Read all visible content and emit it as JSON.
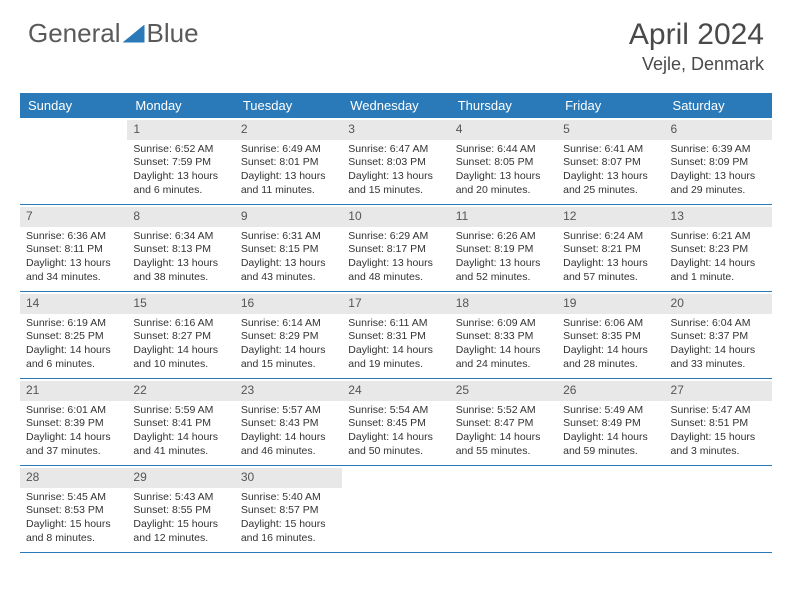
{
  "brand": {
    "part1": "General",
    "part2": "Blue"
  },
  "title": {
    "month": "April 2024",
    "location": "Vejle, Denmark"
  },
  "colors": {
    "header_bg": "#2a7ab9",
    "header_text": "#ffffff",
    "daynum_bg": "#e8e8e8",
    "text": "#333333",
    "rule": "#2a7ab9"
  },
  "weekdays": [
    "Sunday",
    "Monday",
    "Tuesday",
    "Wednesday",
    "Thursday",
    "Friday",
    "Saturday"
  ],
  "weeks": [
    [
      null,
      {
        "n": "1",
        "sr": "Sunrise: 6:52 AM",
        "ss": "Sunset: 7:59 PM",
        "dl1": "Daylight: 13 hours",
        "dl2": "and 6 minutes."
      },
      {
        "n": "2",
        "sr": "Sunrise: 6:49 AM",
        "ss": "Sunset: 8:01 PM",
        "dl1": "Daylight: 13 hours",
        "dl2": "and 11 minutes."
      },
      {
        "n": "3",
        "sr": "Sunrise: 6:47 AM",
        "ss": "Sunset: 8:03 PM",
        "dl1": "Daylight: 13 hours",
        "dl2": "and 15 minutes."
      },
      {
        "n": "4",
        "sr": "Sunrise: 6:44 AM",
        "ss": "Sunset: 8:05 PM",
        "dl1": "Daylight: 13 hours",
        "dl2": "and 20 minutes."
      },
      {
        "n": "5",
        "sr": "Sunrise: 6:41 AM",
        "ss": "Sunset: 8:07 PM",
        "dl1": "Daylight: 13 hours",
        "dl2": "and 25 minutes."
      },
      {
        "n": "6",
        "sr": "Sunrise: 6:39 AM",
        "ss": "Sunset: 8:09 PM",
        "dl1": "Daylight: 13 hours",
        "dl2": "and 29 minutes."
      }
    ],
    [
      {
        "n": "7",
        "sr": "Sunrise: 6:36 AM",
        "ss": "Sunset: 8:11 PM",
        "dl1": "Daylight: 13 hours",
        "dl2": "and 34 minutes."
      },
      {
        "n": "8",
        "sr": "Sunrise: 6:34 AM",
        "ss": "Sunset: 8:13 PM",
        "dl1": "Daylight: 13 hours",
        "dl2": "and 38 minutes."
      },
      {
        "n": "9",
        "sr": "Sunrise: 6:31 AM",
        "ss": "Sunset: 8:15 PM",
        "dl1": "Daylight: 13 hours",
        "dl2": "and 43 minutes."
      },
      {
        "n": "10",
        "sr": "Sunrise: 6:29 AM",
        "ss": "Sunset: 8:17 PM",
        "dl1": "Daylight: 13 hours",
        "dl2": "and 48 minutes."
      },
      {
        "n": "11",
        "sr": "Sunrise: 6:26 AM",
        "ss": "Sunset: 8:19 PM",
        "dl1": "Daylight: 13 hours",
        "dl2": "and 52 minutes."
      },
      {
        "n": "12",
        "sr": "Sunrise: 6:24 AM",
        "ss": "Sunset: 8:21 PM",
        "dl1": "Daylight: 13 hours",
        "dl2": "and 57 minutes."
      },
      {
        "n": "13",
        "sr": "Sunrise: 6:21 AM",
        "ss": "Sunset: 8:23 PM",
        "dl1": "Daylight: 14 hours",
        "dl2": "and 1 minute."
      }
    ],
    [
      {
        "n": "14",
        "sr": "Sunrise: 6:19 AM",
        "ss": "Sunset: 8:25 PM",
        "dl1": "Daylight: 14 hours",
        "dl2": "and 6 minutes."
      },
      {
        "n": "15",
        "sr": "Sunrise: 6:16 AM",
        "ss": "Sunset: 8:27 PM",
        "dl1": "Daylight: 14 hours",
        "dl2": "and 10 minutes."
      },
      {
        "n": "16",
        "sr": "Sunrise: 6:14 AM",
        "ss": "Sunset: 8:29 PM",
        "dl1": "Daylight: 14 hours",
        "dl2": "and 15 minutes."
      },
      {
        "n": "17",
        "sr": "Sunrise: 6:11 AM",
        "ss": "Sunset: 8:31 PM",
        "dl1": "Daylight: 14 hours",
        "dl2": "and 19 minutes."
      },
      {
        "n": "18",
        "sr": "Sunrise: 6:09 AM",
        "ss": "Sunset: 8:33 PM",
        "dl1": "Daylight: 14 hours",
        "dl2": "and 24 minutes."
      },
      {
        "n": "19",
        "sr": "Sunrise: 6:06 AM",
        "ss": "Sunset: 8:35 PM",
        "dl1": "Daylight: 14 hours",
        "dl2": "and 28 minutes."
      },
      {
        "n": "20",
        "sr": "Sunrise: 6:04 AM",
        "ss": "Sunset: 8:37 PM",
        "dl1": "Daylight: 14 hours",
        "dl2": "and 33 minutes."
      }
    ],
    [
      {
        "n": "21",
        "sr": "Sunrise: 6:01 AM",
        "ss": "Sunset: 8:39 PM",
        "dl1": "Daylight: 14 hours",
        "dl2": "and 37 minutes."
      },
      {
        "n": "22",
        "sr": "Sunrise: 5:59 AM",
        "ss": "Sunset: 8:41 PM",
        "dl1": "Daylight: 14 hours",
        "dl2": "and 41 minutes."
      },
      {
        "n": "23",
        "sr": "Sunrise: 5:57 AM",
        "ss": "Sunset: 8:43 PM",
        "dl1": "Daylight: 14 hours",
        "dl2": "and 46 minutes."
      },
      {
        "n": "24",
        "sr": "Sunrise: 5:54 AM",
        "ss": "Sunset: 8:45 PM",
        "dl1": "Daylight: 14 hours",
        "dl2": "and 50 minutes."
      },
      {
        "n": "25",
        "sr": "Sunrise: 5:52 AM",
        "ss": "Sunset: 8:47 PM",
        "dl1": "Daylight: 14 hours",
        "dl2": "and 55 minutes."
      },
      {
        "n": "26",
        "sr": "Sunrise: 5:49 AM",
        "ss": "Sunset: 8:49 PM",
        "dl1": "Daylight: 14 hours",
        "dl2": "and 59 minutes."
      },
      {
        "n": "27",
        "sr": "Sunrise: 5:47 AM",
        "ss": "Sunset: 8:51 PM",
        "dl1": "Daylight: 15 hours",
        "dl2": "and 3 minutes."
      }
    ],
    [
      {
        "n": "28",
        "sr": "Sunrise: 5:45 AM",
        "ss": "Sunset: 8:53 PM",
        "dl1": "Daylight: 15 hours",
        "dl2": "and 8 minutes."
      },
      {
        "n": "29",
        "sr": "Sunrise: 5:43 AM",
        "ss": "Sunset: 8:55 PM",
        "dl1": "Daylight: 15 hours",
        "dl2": "and 12 minutes."
      },
      {
        "n": "30",
        "sr": "Sunrise: 5:40 AM",
        "ss": "Sunset: 8:57 PM",
        "dl1": "Daylight: 15 hours",
        "dl2": "and 16 minutes."
      },
      null,
      null,
      null,
      null
    ]
  ]
}
